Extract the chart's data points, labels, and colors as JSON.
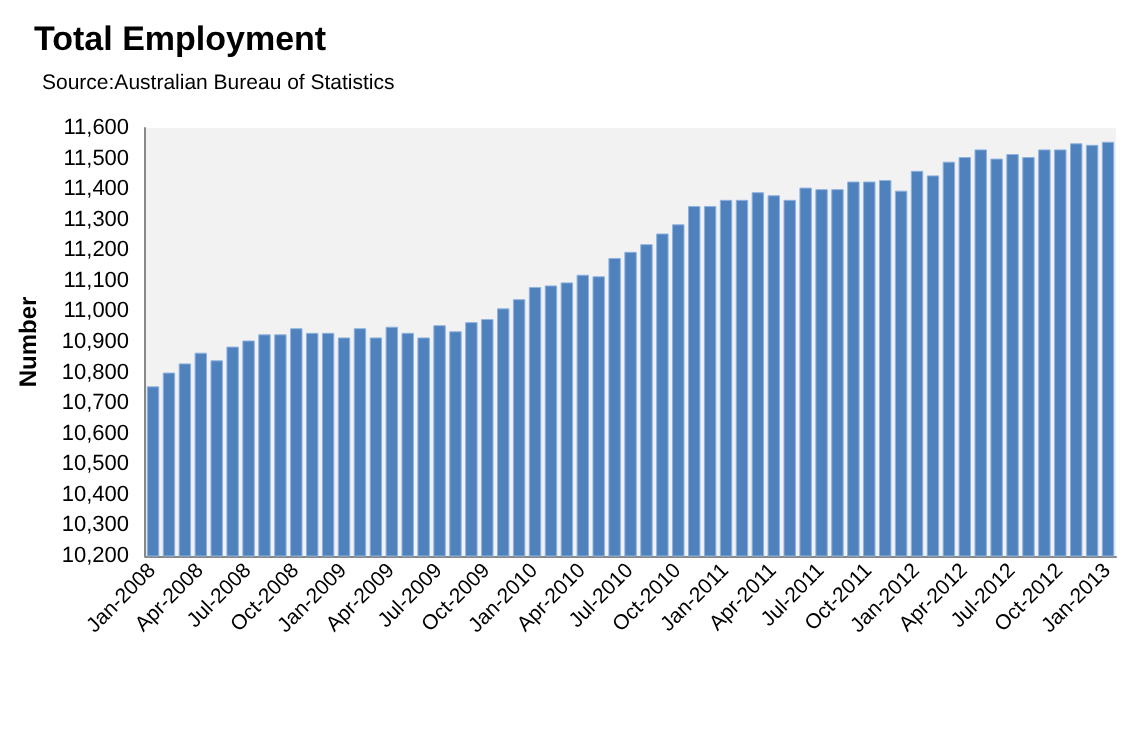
{
  "chart_data": {
    "type": "bar",
    "title": "Total Employment",
    "subtitle": "Source:Australian Bureau of Statistics",
    "ylabel": "Number",
    "categories": [
      "Jan-2008",
      null,
      null,
      "Apr-2008",
      null,
      null,
      "Jul-2008",
      null,
      null,
      "Oct-2008",
      null,
      null,
      "Jan-2009",
      null,
      null,
      "Apr-2009",
      null,
      null,
      "Jul-2009",
      null,
      null,
      "Oct-2009",
      null,
      null,
      "Jan-2010",
      null,
      null,
      "Apr-2010",
      null,
      null,
      "Jul-2010",
      null,
      null,
      "Oct-2010",
      null,
      null,
      "Jan-2011",
      null,
      null,
      "Apr-2011",
      null,
      null,
      "Jul-2011",
      null,
      null,
      "Oct-2011",
      null,
      null,
      "Jan-2012",
      null,
      null,
      "Apr-2012",
      null,
      null,
      "Jul-2012",
      null,
      null,
      "Oct-2012",
      null,
      null,
      "Jan-2013"
    ],
    "values": [
      10755,
      10800,
      10830,
      10865,
      10840,
      10885,
      10905,
      10925,
      10925,
      10945,
      10930,
      10930,
      10915,
      10945,
      10915,
      10950,
      10930,
      10915,
      10955,
      10935,
      10965,
      10975,
      11010,
      11040,
      11080,
      11085,
      11095,
      11120,
      11115,
      11175,
      11195,
      11220,
      11255,
      11285,
      11345,
      11345,
      11365,
      11365,
      11390,
      11380,
      11365,
      11405,
      11400,
      11400,
      11425,
      11425,
      11430,
      11395,
      11460,
      11445,
      11490,
      11505,
      11530,
      11500,
      11515,
      11505,
      11530,
      11530,
      11550,
      11545,
      11555
    ],
    "color": "#4f81bd",
    "ylim": [
      10200,
      11600
    ],
    "yticks": [
      {
        "value": 10200,
        "label": "10,200"
      },
      {
        "value": 10300,
        "label": "10,300"
      },
      {
        "value": 10400,
        "label": "10,400"
      },
      {
        "value": 10500,
        "label": "10,500"
      },
      {
        "value": 10600,
        "label": "10,600"
      },
      {
        "value": 10700,
        "label": "10,700"
      },
      {
        "value": 10800,
        "label": "10,800"
      },
      {
        "value": 10900,
        "label": "10,900"
      },
      {
        "value": 11000,
        "label": "11,000"
      },
      {
        "value": 11100,
        "label": "11,100"
      },
      {
        "value": 11200,
        "label": "11,200"
      },
      {
        "value": 11300,
        "label": "11,300"
      },
      {
        "value": 11400,
        "label": "11,400"
      },
      {
        "value": 11500,
        "label": "11,500"
      },
      {
        "value": 11600,
        "label": "11,600"
      }
    ],
    "grid": false
  }
}
